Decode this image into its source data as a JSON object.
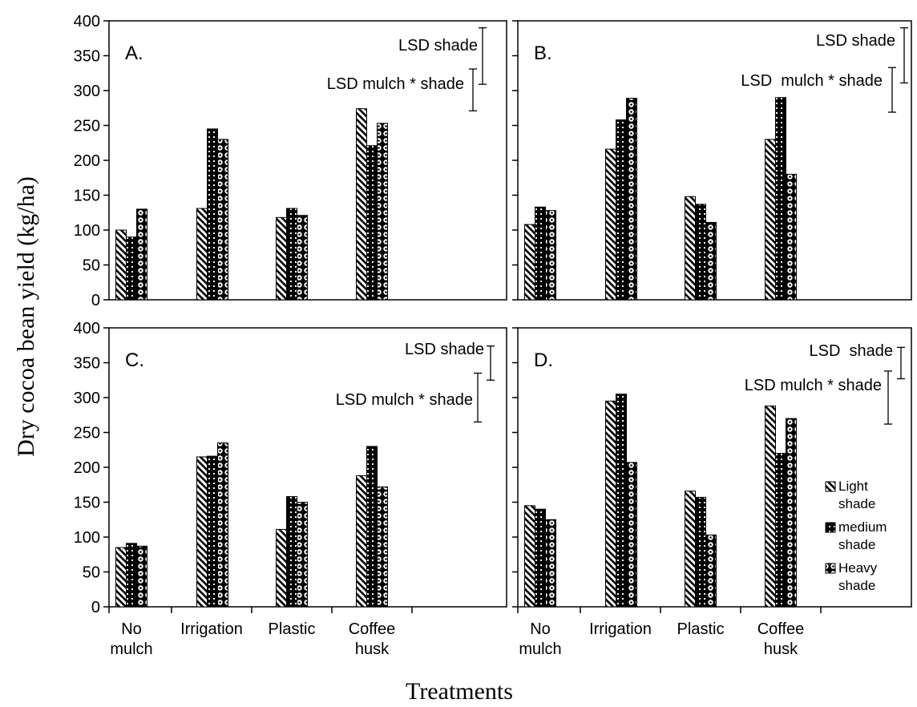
{
  "chart_data": {
    "type": "bar",
    "ylabel": "Dry cocoa bean yield (kg/ha)",
    "xlabel": "Treatments",
    "ylim": [
      0,
      400
    ],
    "yticks": [
      0,
      50,
      100,
      150,
      200,
      250,
      300,
      350,
      400
    ],
    "categories": [
      [
        "No",
        "mulch"
      ],
      [
        "Irrigation"
      ],
      [
        "Plastic"
      ],
      [
        "Coffee",
        "husk"
      ]
    ],
    "legend": [
      [
        "Light",
        "shade"
      ],
      [
        "medium",
        "shade"
      ],
      [
        "Heavy",
        "shade"
      ]
    ],
    "legend_placement": "right, inside panel D",
    "grid": false,
    "panels": [
      {
        "label": "A.",
        "series": [
          {
            "name": "Light shade",
            "values": [
              100,
              131,
              118,
              274
            ]
          },
          {
            "name": "medium shade",
            "values": [
              90,
              245,
              131,
              221
            ]
          },
          {
            "name": "Heavy shade",
            "values": [
              130,
              230,
              121,
              253
            ]
          }
        ],
        "lsd": [
          {
            "label": "LSD shade",
            "low": 309,
            "high": 390
          },
          {
            "label": "LSD mulch * shade",
            "low": 271,
            "high": 331
          }
        ]
      },
      {
        "label": "B.",
        "series": [
          {
            "name": "Light shade",
            "values": [
              108,
              216,
              148,
              230
            ]
          },
          {
            "name": "medium shade",
            "values": [
              133,
              258,
              137,
              290
            ]
          },
          {
            "name": "Heavy shade",
            "values": [
              128,
              289,
              111,
              180
            ]
          }
        ],
        "lsd": [
          {
            "label": "LSD shade",
            "low": 311,
            "high": 390
          },
          {
            "label": "LSD  mulch * shade",
            "low": 269,
            "high": 333
          }
        ]
      },
      {
        "label": "C.",
        "series": [
          {
            "name": "Light shade",
            "values": [
              85,
              215,
              111,
              188
            ]
          },
          {
            "name": "medium shade",
            "values": [
              91,
              216,
              158,
              230
            ]
          },
          {
            "name": "Heavy shade",
            "values": [
              87,
              235,
              150,
              172
            ]
          }
        ],
        "lsd": [
          {
            "label": "LSD shade",
            "low": 325,
            "high": 374
          },
          {
            "label": "LSD mulch * shade",
            "low": 265,
            "high": 335
          }
        ]
      },
      {
        "label": "D.",
        "series": [
          {
            "name": "Light shade",
            "values": [
              145,
              295,
              166,
              288
            ]
          },
          {
            "name": "medium shade",
            "values": [
              140,
              305,
              157,
              220
            ]
          },
          {
            "name": "Heavy shade",
            "values": [
              125,
              207,
              103,
              270
            ]
          }
        ],
        "lsd": [
          {
            "label": "LSD  shade",
            "low": 327,
            "high": 372
          },
          {
            "label": "LSD mulch * shade",
            "low": 262,
            "high": 338
          }
        ]
      }
    ]
  }
}
